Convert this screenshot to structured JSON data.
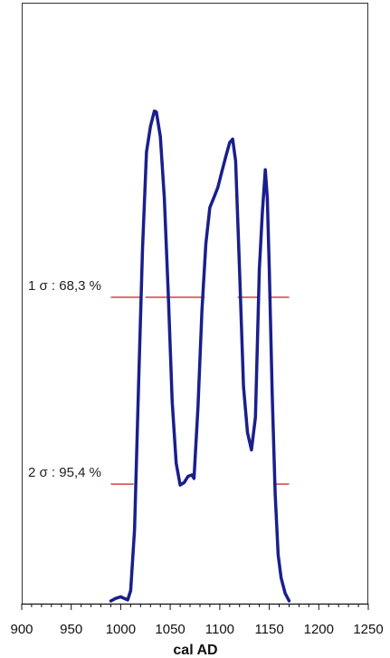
{
  "chart_data": {
    "type": "line",
    "xlabel": "cal AD",
    "ylabel": "",
    "xlim": [
      900,
      1250
    ],
    "ylim": [
      0,
      1
    ],
    "grid": false,
    "legend": "none",
    "x_ticks": [
      {
        "value": 900,
        "label": "900"
      },
      {
        "value": 950,
        "label": "950"
      },
      {
        "value": 1000,
        "label": "1000"
      },
      {
        "value": 1050,
        "label": "1050"
      },
      {
        "value": 1100,
        "label": "1100"
      },
      {
        "value": 1150,
        "label": "1150"
      },
      {
        "value": 1200,
        "label": "1200"
      },
      {
        "value": 1250,
        "label": "1250"
      }
    ],
    "minor_tick_step": 10,
    "colors": {
      "curve": "#1a1f8c",
      "level_lines": "#d94040",
      "frame": "#333333"
    },
    "series": [
      {
        "x": [
          990,
          995,
          1000,
          1007,
          1010,
          1014,
          1018,
          1022,
          1026,
          1030,
          1034,
          1036,
          1040,
          1044,
          1048,
          1052,
          1056,
          1060,
          1064,
          1068,
          1072,
          1074,
          1078,
          1082,
          1086,
          1090,
          1094,
          1098,
          1102,
          1106,
          1110,
          1113,
          1116,
          1120,
          1124,
          1128,
          1132,
          1136,
          1140,
          1143,
          1146,
          1148,
          1150,
          1153,
          1156,
          1159,
          1162,
          1166,
          1170
        ],
        "y": [
          0.0,
          0.005,
          0.008,
          0.002,
          0.02,
          0.14,
          0.42,
          0.69,
          0.88,
          0.93,
          0.96,
          0.958,
          0.91,
          0.79,
          0.6,
          0.39,
          0.27,
          0.227,
          0.232,
          0.244,
          0.247,
          0.24,
          0.38,
          0.57,
          0.7,
          0.771,
          0.79,
          0.81,
          0.84,
          0.87,
          0.898,
          0.905,
          0.862,
          0.65,
          0.42,
          0.33,
          0.296,
          0.36,
          0.65,
          0.76,
          0.845,
          0.79,
          0.65,
          0.4,
          0.21,
          0.09,
          0.045,
          0.015,
          0.0
        ]
      }
    ],
    "levels": [
      {
        "label": "1 σ : 68,3 %",
        "y": 0.595,
        "segments": [
          [
            990,
            1020
          ],
          [
            1025,
            1085
          ],
          [
            1118,
            1140
          ],
          [
            1150,
            1170
          ]
        ]
      },
      {
        "label": "2 σ : 95,4 %",
        "y": 0.229,
        "segments": [
          [
            990,
            1013
          ],
          [
            1156,
            1170
          ]
        ]
      }
    ]
  }
}
